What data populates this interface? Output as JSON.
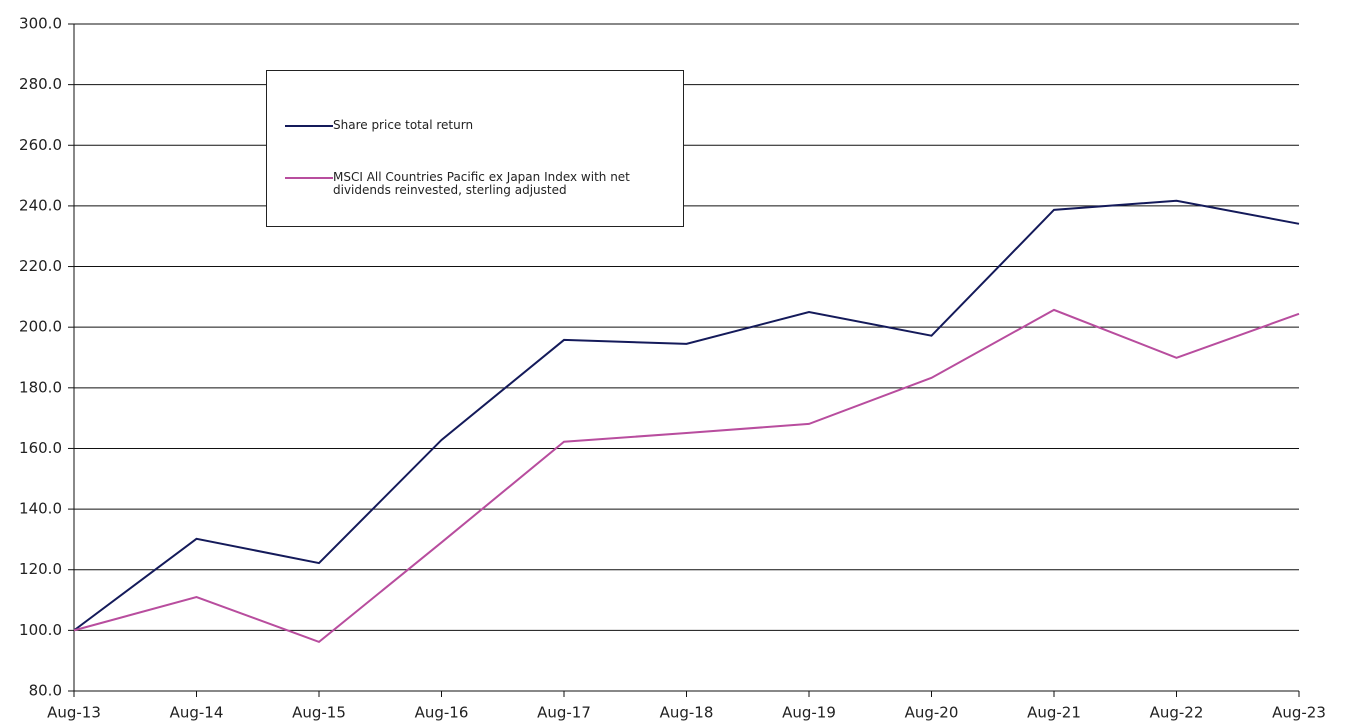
{
  "chart_data": {
    "type": "line",
    "x": [
      "Aug-13",
      "Aug-14",
      "Aug-15",
      "Aug-16",
      "Aug-17",
      "Aug-18",
      "Aug-19",
      "Aug-20",
      "Aug-21",
      "Aug-22",
      "Aug-23"
    ],
    "series": [
      {
        "name": "Share price total return",
        "color": "#141a5a",
        "values": [
          100,
          130.2,
          122.2,
          162.8,
          195.8,
          194.5,
          205,
          197.2,
          238.7,
          241.7,
          234.1
        ]
      },
      {
        "name": "MSCI All Countries Pacific ex Japan Index with net dividends reinvested, sterling adjusted",
        "color": "#b84d9e",
        "values": [
          100,
          111,
          96.2,
          129,
          162.2,
          165.1,
          168.1,
          183.3,
          205.7,
          189.9,
          204.4
        ]
      }
    ],
    "ylim": [
      80,
      300
    ],
    "yticks": [
      {
        "value": 80,
        "label": "80.0"
      },
      {
        "value": 100,
        "label": "100.0"
      },
      {
        "value": 120,
        "label": "120.0"
      },
      {
        "value": 140,
        "label": "140.0"
      },
      {
        "value": 160,
        "label": "160.0"
      },
      {
        "value": 180,
        "label": "180.0"
      },
      {
        "value": 200,
        "label": "200.0"
      },
      {
        "value": 220,
        "label": "220.0"
      },
      {
        "value": 240,
        "label": "240.0"
      },
      {
        "value": 260,
        "label": "260.0"
      },
      {
        "value": 280,
        "label": "280.0"
      },
      {
        "value": 300,
        "label": "300.0"
      }
    ],
    "grid": true
  }
}
